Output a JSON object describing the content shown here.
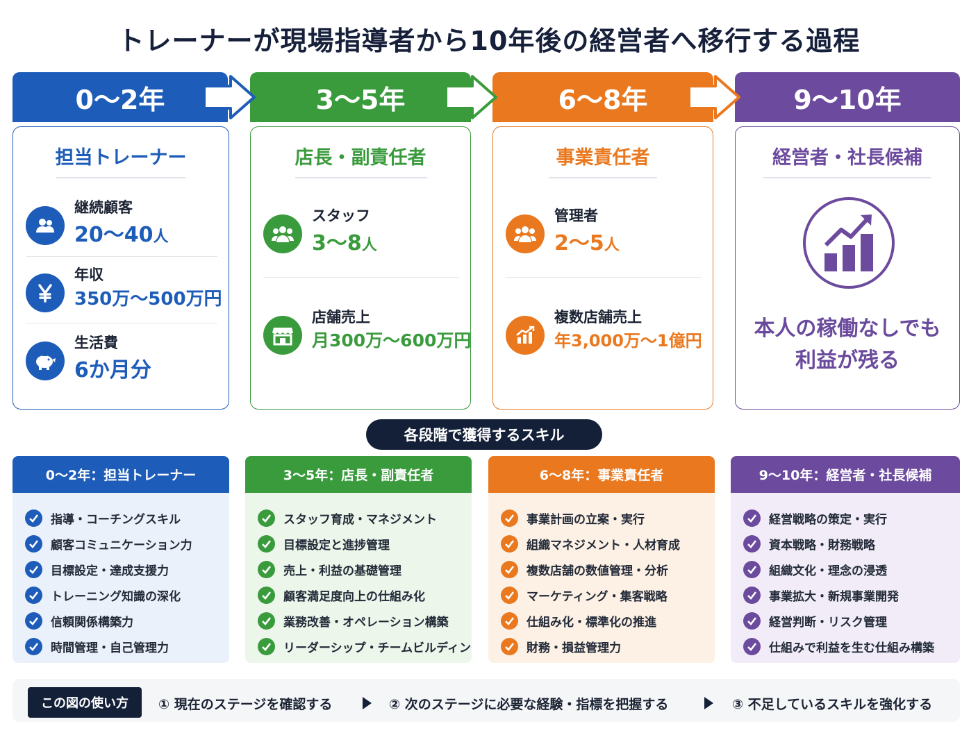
{
  "title": "トレーナーが現場指導者から10年後の経営者へ移行する過程",
  "colors": {
    "blue": "#1d5cb8",
    "green": "#3a9b3d",
    "orange": "#e9781f",
    "purple": "#6c4a9e",
    "navy": "#132038"
  },
  "stages": [
    {
      "period": "0〜2年",
      "role": "担当トレーナー",
      "metrics": [
        {
          "icon": "users-icon",
          "label": "継続顧客",
          "value": "20〜40",
          "unit": "人"
        },
        {
          "icon": "yen-icon",
          "label": "年収",
          "value": "350万〜500万円",
          "unit": ""
        },
        {
          "icon": "piggy-bank-icon",
          "label": "生活費",
          "value": "6か月分",
          "unit": ""
        }
      ]
    },
    {
      "period": "3〜5年",
      "role": "店長・副責任者",
      "metrics": [
        {
          "icon": "team-icon",
          "label": "スタッフ",
          "value": "3〜8",
          "unit": "人"
        },
        {
          "icon": "store-icon",
          "label": "店舗売上",
          "value": "月300万〜600万円",
          "unit": ""
        }
      ]
    },
    {
      "period": "6〜8年",
      "role": "事業責任者",
      "metrics": [
        {
          "icon": "managers-icon",
          "label": "管理者",
          "value": "2〜5",
          "unit": "人"
        },
        {
          "icon": "growth-chart-icon",
          "label": "複数店舗売上",
          "value": "年3,000万〜1億円",
          "unit": ""
        }
      ]
    },
    {
      "period": "9〜10年",
      "role": "経営者・社長候補",
      "icon": "rising-bar-chart-icon",
      "statement": [
        "本人の稼働なしでも",
        "利益が残る"
      ]
    }
  ],
  "skills_heading": "各段階で獲得するスキル",
  "skill_groups": [
    {
      "title": "0〜2年：担当トレーナー",
      "items": [
        "指導・コーチングスキル",
        "顧客コミュニケーション力",
        "目標設定・達成支援力",
        "トレーニング知識の深化",
        "信頼関係構築力",
        "時間管理・自己管理力"
      ]
    },
    {
      "title": "3〜5年：店長・副責任者",
      "items": [
        "スタッフ育成・マネジメント",
        "目標設定と進捗管理",
        "売上・利益の基礎管理",
        "顧客満足度向上の仕組み化",
        "業務改善・オペレーション構築",
        "リーダーシップ・チームビルディング"
      ]
    },
    {
      "title": "6〜8年：事業責任者",
      "items": [
        "事業計画の立案・実行",
        "組織マネジメント・人材育成",
        "複数店舗の数値管理・分析",
        "マーケティング・集客戦略",
        "仕組み化・標準化の推進",
        "財務・損益管理力"
      ]
    },
    {
      "title": "9〜10年：経営者・社長候補",
      "items": [
        "経営戦略の策定・実行",
        "資本戦略・財務戦略",
        "組織文化・理念の浸透",
        "事業拡大・新規事業開発",
        "経営判断・リスク管理",
        "仕組みで利益を生む仕組み構築"
      ]
    }
  ],
  "howto": {
    "label": "この図の使い方",
    "steps": [
      "① 現在のステージを確認する",
      "② 次のステージに必要な経験・指標を把握する",
      "③ 不足しているスキルを強化する"
    ]
  }
}
